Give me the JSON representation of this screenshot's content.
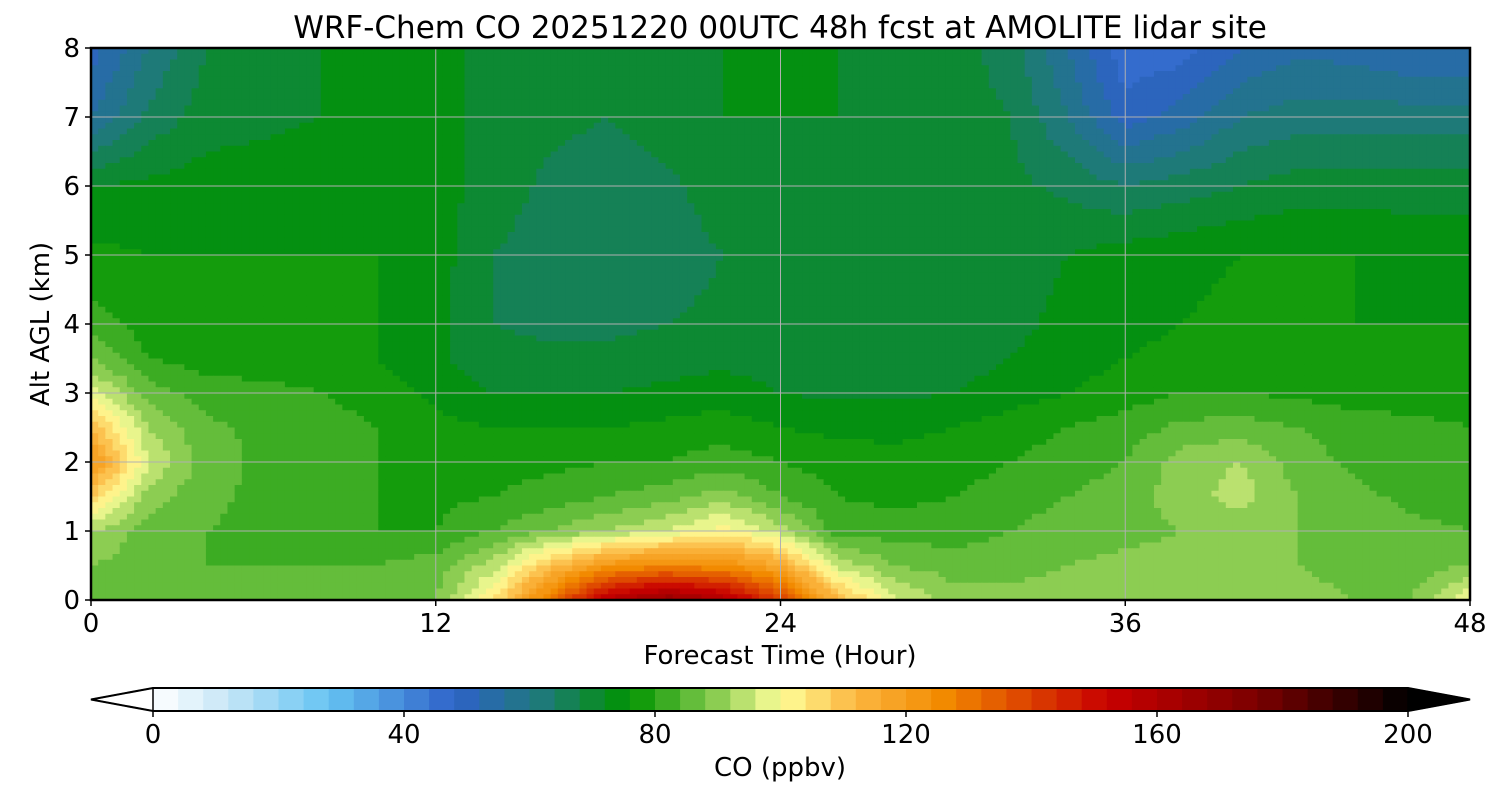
{
  "chart_data": {
    "type": "heatmap",
    "title": "WRF-Chem CO  20251220 00UTC 48h fcst at AMOLITE lidar site",
    "xlabel": "Forecast Time (Hour)",
    "ylabel": "Alt AGL (km)",
    "xlim": [
      0,
      48
    ],
    "ylim": [
      0,
      8
    ],
    "xticks": [
      0,
      12,
      24,
      36,
      48
    ],
    "yticks": [
      0,
      1,
      2,
      3,
      4,
      5,
      6,
      7,
      8
    ],
    "grid": true,
    "colorbar": {
      "label": "CO  (ppbv)",
      "range": [
        0,
        200
      ],
      "ticks": [
        0,
        40,
        80,
        120,
        160,
        200
      ],
      "orientation": "horizontal",
      "position": "bottom",
      "extend": "both",
      "color_stops": [
        {
          "value": 0,
          "color": "#ffffff"
        },
        {
          "value": 12,
          "color": "#c6e6f7"
        },
        {
          "value": 28,
          "color": "#66c4f2"
        },
        {
          "value": 48,
          "color": "#2e62c9"
        },
        {
          "value": 62,
          "color": "#1e7a78"
        },
        {
          "value": 76,
          "color": "#009400"
        },
        {
          "value": 90,
          "color": "#8ccd52"
        },
        {
          "value": 100,
          "color": "#ffff9a"
        },
        {
          "value": 112,
          "color": "#fbb640"
        },
        {
          "value": 126,
          "color": "#f28a00"
        },
        {
          "value": 152,
          "color": "#c80000"
        },
        {
          "value": 176,
          "color": "#7a0000"
        },
        {
          "value": 200,
          "color": "#000000"
        }
      ]
    },
    "x": [
      0,
      2,
      4,
      6,
      8,
      10,
      12,
      14,
      16,
      18,
      20,
      22,
      24,
      26,
      28,
      30,
      32,
      34,
      36,
      38,
      40,
      42,
      44,
      46,
      48
    ],
    "y": [
      0,
      0.5,
      1,
      1.5,
      2,
      2.5,
      3,
      3.5,
      4,
      5,
      6,
      7,
      8
    ],
    "z": [
      [
        86,
        86,
        85,
        85,
        85,
        86,
        88,
        104,
        130,
        158,
        168,
        160,
        140,
        112,
        97,
        90,
        90,
        91,
        91,
        91,
        91,
        90,
        88,
        88,
        100
      ],
      [
        88,
        86,
        84,
        84,
        84,
        84,
        86,
        94,
        110,
        122,
        126,
        124,
        116,
        95,
        88,
        86,
        86,
        88,
        89,
        89,
        89,
        88,
        86,
        86,
        88
      ],
      [
        92,
        86,
        84,
        83,
        82,
        80,
        80,
        84,
        88,
        92,
        96,
        102,
        94,
        82,
        82,
        82,
        84,
        86,
        87,
        88,
        89,
        88,
        86,
        85,
        84
      ],
      [
        108,
        90,
        85,
        83,
        82,
        80,
        79,
        80,
        82,
        84,
        86,
        90,
        84,
        80,
        79,
        80,
        82,
        84,
        86,
        90,
        94,
        88,
        85,
        83,
        82
      ],
      [
        122,
        96,
        86,
        83,
        82,
        80,
        78,
        78,
        79,
        80,
        80,
        82,
        80,
        78,
        77,
        78,
        80,
        82,
        84,
        90,
        92,
        86,
        83,
        82,
        81
      ],
      [
        112,
        92,
        85,
        83,
        82,
        80,
        77,
        76,
        76,
        76,
        77,
        78,
        76,
        75,
        75,
        76,
        78,
        80,
        82,
        85,
        86,
        84,
        82,
        81,
        80
      ],
      [
        98,
        86,
        82,
        81,
        80,
        78,
        75,
        72,
        72,
        72,
        73,
        74,
        72,
        71,
        71,
        72,
        74,
        76,
        78,
        80,
        80,
        79,
        78,
        78,
        78
      ],
      [
        88,
        80,
        78,
        78,
        78,
        76,
        73,
        69,
        69,
        69,
        70,
        71,
        70,
        70,
        70,
        70,
        72,
        74,
        76,
        77,
        77,
        77,
        76,
        76,
        76
      ],
      [
        82,
        78,
        77,
        77,
        77,
        76,
        73,
        68,
        67,
        67,
        68,
        69,
        69,
        70,
        70,
        70,
        71,
        73,
        75,
        76,
        77,
        77,
        76,
        76,
        76
      ],
      [
        77,
        76,
        76,
        76,
        76,
        76,
        74,
        68,
        66,
        65,
        66,
        68,
        69,
        70,
        70,
        70,
        70,
        72,
        74,
        75,
        76,
        76,
        76,
        75,
        75
      ],
      [
        72,
        73,
        74,
        74,
        75,
        75,
        74,
        70,
        67,
        66,
        67,
        70,
        70,
        70,
        70,
        70,
        69,
        67,
        64,
        66,
        68,
        70,
        70,
        70,
        70
      ],
      [
        56,
        65,
        70,
        71,
        72,
        73,
        73,
        71,
        69,
        68,
        70,
        72,
        72,
        72,
        71,
        70,
        68,
        60,
        50,
        54,
        60,
        62,
        62,
        62,
        62
      ],
      [
        50,
        60,
        68,
        70,
        72,
        72,
        73,
        71,
        69,
        68,
        70,
        72,
        72,
        72,
        71,
        70,
        66,
        56,
        45,
        46,
        52,
        55,
        54,
        52,
        52
      ]
    ]
  }
}
